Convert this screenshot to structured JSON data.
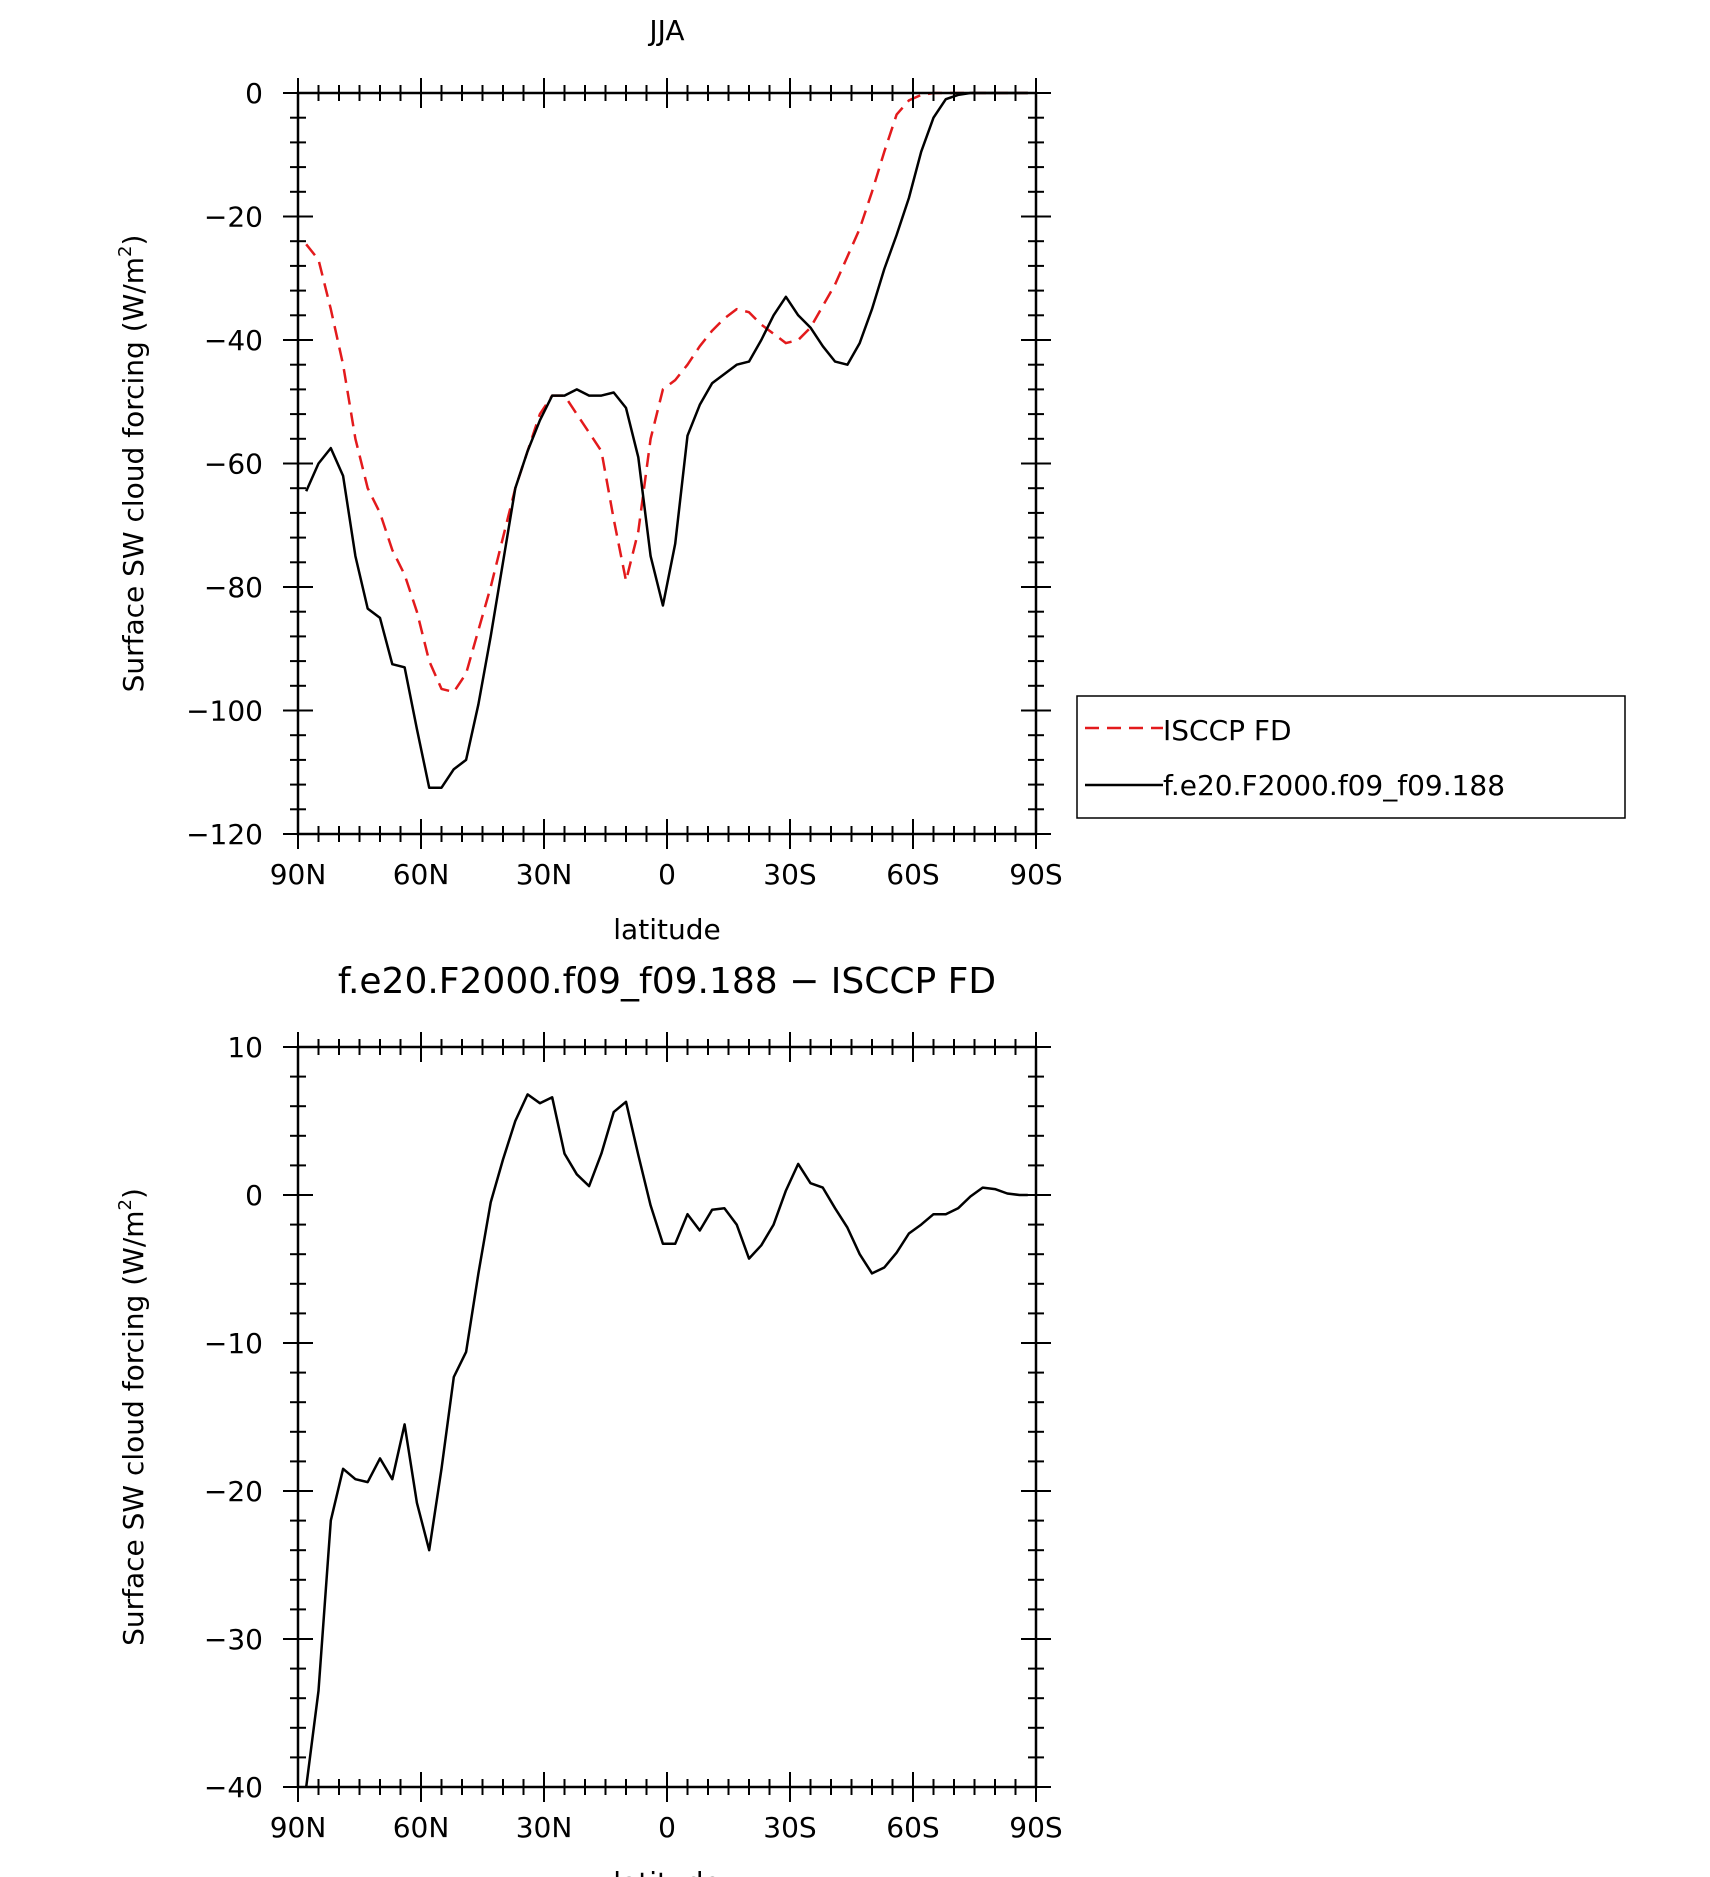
{
  "chart_data": [
    {
      "type": "line",
      "title": "JJA",
      "xlabel": "latitude",
      "ylabel": "Surface SW cloud forcing (W/m",
      "ylabel_sup": "2",
      "ylabel_tail": ")",
      "x_ticks": [
        90,
        60,
        30,
        0,
        -30,
        -60,
        -90
      ],
      "x_tick_labels": [
        "90N",
        "60N",
        "30N",
        "0",
        "30S",
        "60S",
        "90S"
      ],
      "xlim": [
        90,
        -90
      ],
      "y_ticks": [
        0,
        -20,
        -40,
        -60,
        -80,
        -100,
        -120
      ],
      "y_tick_labels": [
        "0",
        "−20",
        "−40",
        "−60",
        "−80",
        "−100",
        "−120"
      ],
      "ylim": [
        -120,
        0
      ],
      "legend_position": "right",
      "series": [
        {
          "name": "ISCCP FD",
          "color": "#e31a1c",
          "dash": "dashed",
          "x": [
            88,
            85,
            82,
            79,
            76,
            73,
            70,
            67,
            64,
            61,
            58,
            55,
            52,
            49,
            46,
            43,
            40,
            37,
            34,
            31,
            28,
            25,
            22,
            19,
            16,
            13,
            10,
            7,
            4,
            1,
            -2,
            -5,
            -8,
            -11,
            -14,
            -17,
            -20,
            -23,
            -26,
            -29,
            -32,
            -35,
            -38,
            -41,
            -44,
            -47,
            -50,
            -53,
            -56,
            -59,
            -62,
            -65,
            -68,
            -71,
            -74,
            -77,
            -80,
            -83,
            -86,
            -88
          ],
          "y": [
            -24.5,
            -27,
            -35,
            -44,
            -56,
            -64,
            -68,
            -74,
            -78,
            -84,
            -92,
            -96.5,
            -97,
            -94,
            -87,
            -80,
            -72,
            -64,
            -58,
            -52,
            -49,
            -49,
            -52,
            -55,
            -58,
            -69,
            -79,
            -71,
            -56,
            -48,
            -46.5,
            -44,
            -41,
            -38.5,
            -36.5,
            -35,
            -35.5,
            -37.5,
            -39,
            -40.5,
            -40,
            -38,
            -34.5,
            -31,
            -26.5,
            -22,
            -16,
            -9.5,
            -3.5,
            -1.2,
            -0.3,
            0,
            0,
            0,
            0,
            0,
            0,
            0,
            0,
            0
          ]
        },
        {
          "name": "f.e20.F2000.f09_f09.188",
          "color": "#000000",
          "dash": "solid",
          "x": [
            88,
            85,
            82,
            79,
            76,
            73,
            70,
            67,
            64,
            61,
            58,
            55,
            52,
            49,
            46,
            43,
            40,
            37,
            34,
            31,
            28,
            25,
            22,
            19,
            16,
            13,
            10,
            7,
            4,
            1,
            -2,
            -5,
            -8,
            -11,
            -14,
            -17,
            -20,
            -23,
            -26,
            -29,
            -32,
            -35,
            -38,
            -41,
            -44,
            -47,
            -50,
            -53,
            -56,
            -59,
            -62,
            -65,
            -68,
            -71,
            -74,
            -77,
            -80,
            -83,
            -86,
            -88
          ],
          "y": [
            -64.5,
            -60,
            -57.5,
            -62,
            -75,
            -83.5,
            -85,
            -92.5,
            -93,
            -103,
            -112.5,
            -112.5,
            -109.5,
            -108,
            -99,
            -88,
            -76,
            -64,
            -58,
            -53,
            -49,
            -49,
            -48,
            -49,
            -49,
            -48.5,
            -51,
            -59,
            -75,
            -83,
            -73,
            -55.5,
            -50.5,
            -47,
            -45.5,
            -44,
            -43.5,
            -40,
            -36,
            -33,
            -36,
            -38,
            -41,
            -43.5,
            -44,
            -40.5,
            -35,
            -28.5,
            -23,
            -17,
            -9.5,
            -4,
            -1,
            -0.3,
            0,
            0,
            0,
            0,
            0,
            0
          ]
        }
      ]
    },
    {
      "type": "line",
      "title": "f.e20.F2000.f09_f09.188 − ISCCP FD",
      "xlabel": "latitude",
      "ylabel": "Surface SW cloud forcing (W/m",
      "ylabel_sup": "2",
      "ylabel_tail": ")",
      "x_ticks": [
        90,
        60,
        30,
        0,
        -30,
        -60,
        -90
      ],
      "x_tick_labels": [
        "90N",
        "60N",
        "30N",
        "0",
        "30S",
        "60S",
        "90S"
      ],
      "xlim": [
        90,
        -90
      ],
      "y_ticks": [
        10,
        0,
        -10,
        -20,
        -30,
        -40
      ],
      "y_tick_labels": [
        "10",
        "0",
        "−10",
        "−20",
        "−30",
        "−40"
      ],
      "ylim": [
        -40,
        10
      ],
      "series": [
        {
          "color": "#000000",
          "dash": "solid",
          "x": [
            88,
            85,
            82,
            79,
            76,
            73,
            70,
            67,
            64,
            61,
            58,
            55,
            52,
            49,
            46,
            43,
            40,
            37,
            34,
            31,
            28,
            25,
            22,
            19,
            16,
            13,
            10,
            7,
            4,
            1,
            -2,
            -5,
            -8,
            -11,
            -14,
            -17,
            -20,
            -23,
            -26,
            -29,
            -32,
            -35,
            -38,
            -41,
            -44,
            -47,
            -50,
            -53,
            -56,
            -59,
            -62,
            -65,
            -68,
            -71,
            -74,
            -77,
            -80,
            -83,
            -86,
            -88
          ],
          "y": [
            -40,
            -33.5,
            -22,
            -18.5,
            -19.2,
            -19.4,
            -17.8,
            -19.2,
            -15.5,
            -20.8,
            -24,
            -18.5,
            -12.3,
            -10.6,
            -5.3,
            -0.5,
            2.4,
            5,
            6.8,
            6.2,
            6.6,
            2.8,
            1.4,
            0.6,
            2.8,
            5.6,
            6.3,
            2.7,
            -0.7,
            -3.3,
            -3.3,
            -1.3,
            -2.4,
            -1,
            -0.9,
            -2,
            -4.3,
            -3.4,
            -2,
            0.3,
            2.1,
            0.8,
            0.5,
            -0.9,
            -2.2,
            -4,
            -5.3,
            -4.9,
            -3.9,
            -2.6,
            -2,
            -1.3,
            -1.3,
            -0.9,
            -0.1,
            0.5,
            0.4,
            0.1,
            0,
            0
          ]
        }
      ]
    }
  ]
}
